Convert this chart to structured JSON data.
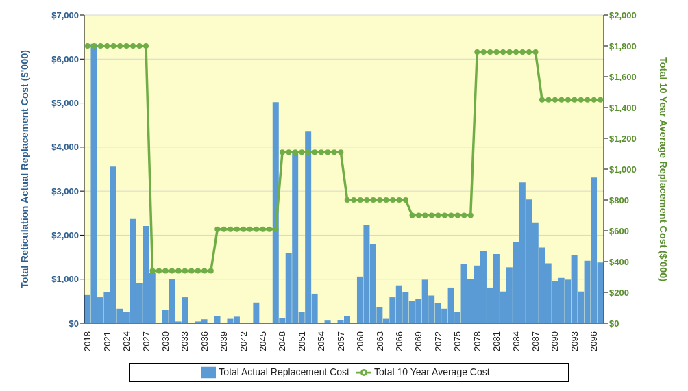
{
  "chart_data": {
    "type": "bar",
    "ylabel": "Total Reticulation Actual Replacement Cost ($'000)",
    "y2label": "Total 10 Year Average Replacement Cost ($'000)",
    "categories": [
      "2018",
      null,
      null,
      "2021",
      null,
      null,
      "2024",
      null,
      null,
      "2027",
      null,
      null,
      "2030",
      null,
      null,
      "2033",
      null,
      null,
      "2036",
      null,
      null,
      "2039",
      null,
      null,
      "2042",
      null,
      null,
      "2045",
      null,
      null,
      "2048",
      null,
      null,
      "2051",
      null,
      null,
      "2054",
      null,
      null,
      "2057",
      null,
      null,
      "2060",
      null,
      null,
      "2063",
      null,
      null,
      "2066",
      null,
      null,
      "2069",
      null,
      null,
      "2072",
      null,
      null,
      "2075",
      null,
      null,
      "2078",
      null,
      null,
      "2081",
      null,
      null,
      "2084",
      null,
      null,
      "2087",
      null,
      null,
      "2090",
      null,
      null,
      "2093",
      null,
      null,
      "2096",
      null
    ],
    "series": [
      {
        "name": "Total Actual Replacement Cost",
        "color": "#5b9bd5",
        "values": [
          640,
          6350,
          590,
          700,
          3560,
          330,
          260,
          2370,
          910,
          2210,
          1150,
          0,
          310,
          1010,
          40,
          590,
          0,
          40,
          90,
          0,
          160,
          0,
          100,
          150,
          0,
          0,
          470,
          0,
          0,
          5020,
          120,
          1590,
          3880,
          250,
          4350,
          670,
          0,
          60,
          0,
          70,
          170,
          null,
          1060,
          2230,
          1790,
          360,
          100,
          590,
          860,
          700,
          510,
          550,
          990,
          630,
          460,
          330,
          810,
          250,
          1340,
          1000,
          1310,
          1650,
          810,
          1570,
          720,
          1270,
          1850,
          3200,
          2810,
          2290,
          1720,
          1360,
          950,
          1030,
          990,
          1550,
          720,
          1420,
          3310,
          1380
        ]
      },
      {
        "name": "Total 10 Year Average Cost",
        "type": "line",
        "axis": "y2",
        "color": "#70ad47",
        "values": [
          1800,
          1800,
          1800,
          1800,
          1800,
          1800,
          1800,
          1800,
          1800,
          1800,
          340,
          340,
          340,
          340,
          340,
          340,
          340,
          340,
          340,
          340,
          610,
          610,
          610,
          610,
          610,
          610,
          610,
          610,
          610,
          610,
          1110,
          1110,
          1110,
          1110,
          1110,
          1110,
          1110,
          1110,
          1110,
          1110,
          800,
          800,
          800,
          800,
          800,
          800,
          800,
          800,
          800,
          800,
          700,
          700,
          700,
          700,
          700,
          700,
          700,
          700,
          700,
          700,
          1760,
          1760,
          1760,
          1760,
          1760,
          1760,
          1760,
          1760,
          1760,
          1760,
          1450,
          1450,
          1450,
          1450,
          1450,
          1450,
          1450,
          1450,
          1450,
          1450
        ]
      }
    ],
    "ylim": [
      0,
      7000
    ],
    "yticks": [
      {
        "value": 0,
        "label": "$0"
      },
      {
        "value": 1000,
        "label": "$1,000"
      },
      {
        "value": 2000,
        "label": "$2,000"
      },
      {
        "value": 3000,
        "label": "$3,000"
      },
      {
        "value": 4000,
        "label": "$4,000"
      },
      {
        "value": 5000,
        "label": "$5,000"
      },
      {
        "value": 6000,
        "label": "$6,000"
      },
      {
        "value": 7000,
        "label": "$7,000"
      }
    ],
    "y2lim": [
      0,
      2000
    ],
    "y2ticks": [
      {
        "value": 0,
        "label": "$0"
      },
      {
        "value": 200,
        "label": "$200"
      },
      {
        "value": 400,
        "label": "$400"
      },
      {
        "value": 600,
        "label": "$600"
      },
      {
        "value": 800,
        "label": "$800"
      },
      {
        "value": 1000,
        "label": "$1,000"
      },
      {
        "value": 1200,
        "label": "$1,200"
      },
      {
        "value": 1400,
        "label": "$1,400"
      },
      {
        "value": 1600,
        "label": "$1,600"
      },
      {
        "value": 1800,
        "label": "$1,800"
      },
      {
        "value": 2000,
        "label": "$2,000"
      }
    ],
    "grid": "y",
    "legend": "bottom",
    "marker": "circle"
  }
}
